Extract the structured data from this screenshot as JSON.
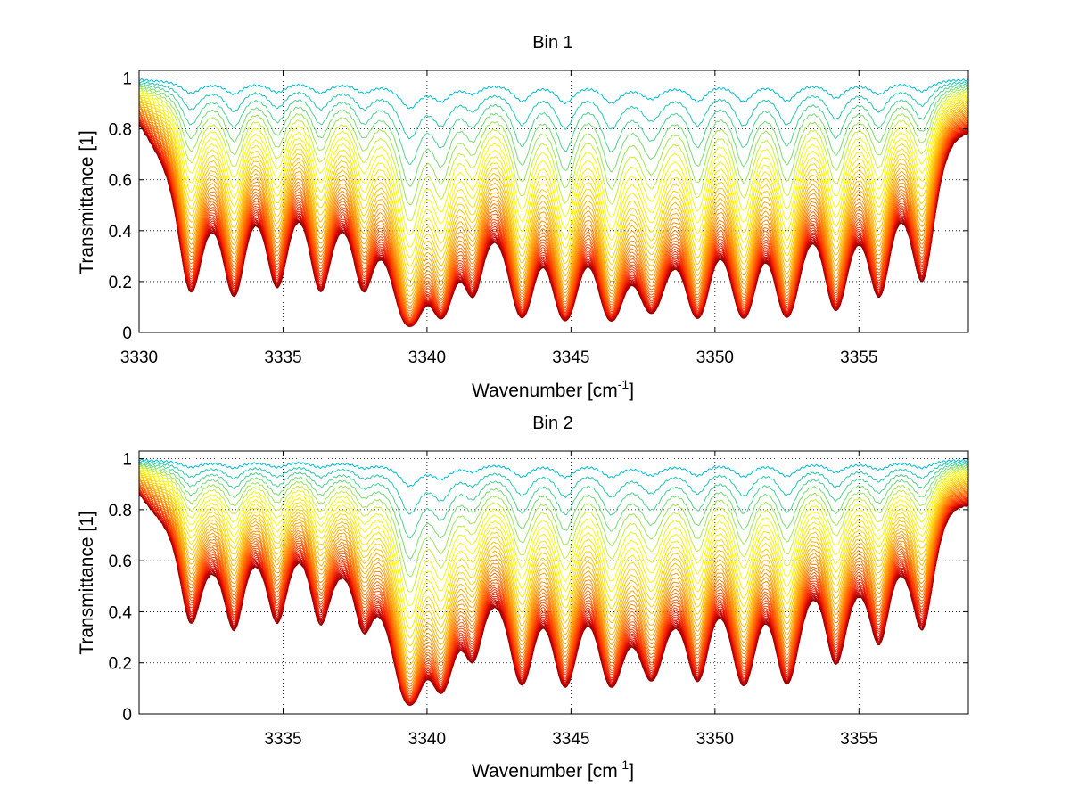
{
  "chart_data": [
    {
      "type": "line",
      "title": "Bin 1",
      "xlabel": "Wavenumber [cm",
      "xlabel_sup": "-1",
      "xlabel_end": "]",
      "ylabel": "Transmittance [1]",
      "xlim": [
        3330,
        3358.8
      ],
      "ylim": [
        0,
        1.03
      ],
      "xticks": [
        3330,
        3335,
        3340,
        3345,
        3350,
        3355
      ],
      "yticks": [
        0,
        0.2,
        0.4,
        0.6,
        0.8,
        1
      ],
      "ytick_labels": [
        "0",
        "0.2",
        "0.4",
        "0.6",
        "0.8",
        "1"
      ],
      "grid": true,
      "colormap": [
        "#7f0000",
        "#cc0000",
        "#ff3300",
        "#ff7700",
        "#ffbb00",
        "#ffff00",
        "#00bcd4"
      ],
      "series_count": 40,
      "absorption_lines": [
        {
          "x": 3331.8,
          "depth": 0.55,
          "width": 0.42
        },
        {
          "x": 3333.3,
          "depth": 0.55,
          "width": 0.4
        },
        {
          "x": 3334.8,
          "depth": 0.45,
          "width": 0.4
        },
        {
          "x": 3336.3,
          "depth": 0.48,
          "width": 0.4
        },
        {
          "x": 3337.8,
          "depth": 0.45,
          "width": 0.4
        },
        {
          "x": 3339.4,
          "depth": 1.1,
          "width": 0.45
        },
        {
          "x": 3340.5,
          "depth": 0.7,
          "width": 0.4
        },
        {
          "x": 3341.6,
          "depth": 0.45,
          "width": 0.4
        },
        {
          "x": 3343.3,
          "depth": 0.8,
          "width": 0.4
        },
        {
          "x": 3344.8,
          "depth": 0.85,
          "width": 0.4
        },
        {
          "x": 3346.4,
          "depth": 0.85,
          "width": 0.42
        },
        {
          "x": 3347.8,
          "depth": 0.7,
          "width": 0.5
        },
        {
          "x": 3349.4,
          "depth": 0.8,
          "width": 0.4
        },
        {
          "x": 3351.0,
          "depth": 0.8,
          "width": 0.4
        },
        {
          "x": 3352.5,
          "depth": 0.8,
          "width": 0.4
        },
        {
          "x": 3354.2,
          "depth": 0.7,
          "width": 0.4
        },
        {
          "x": 3355.7,
          "depth": 0.55,
          "width": 0.4
        },
        {
          "x": 3357.2,
          "depth": 0.45,
          "width": 0.4
        }
      ]
    },
    {
      "type": "line",
      "title": "Bin 2",
      "xlabel": "Wavenumber [cm",
      "xlabel_sup": "-1",
      "xlabel_end": "]",
      "ylabel": "Transmittance [1]",
      "xlim": [
        3330,
        3358.8
      ],
      "ylim": [
        0,
        1.03
      ],
      "xticks": [
        3335,
        3340,
        3345,
        3350,
        3355
      ],
      "yticks": [
        0,
        0.2,
        0.4,
        0.6,
        0.8,
        1
      ],
      "ytick_labels": [
        "0",
        "0.2",
        "0.4",
        "0.6",
        "0.8",
        "1"
      ],
      "grid": true,
      "colormap": [
        "#7f0000",
        "#cc0000",
        "#ff3300",
        "#ff7700",
        "#ffbb00",
        "#ffff00",
        "#00bcd4"
      ],
      "series_count": 40,
      "absorption_lines": [
        {
          "x": 3331.8,
          "depth": 0.3,
          "width": 0.45
        },
        {
          "x": 3333.3,
          "depth": 0.3,
          "width": 0.42
        },
        {
          "x": 3334.8,
          "depth": 0.25,
          "width": 0.42
        },
        {
          "x": 3336.3,
          "depth": 0.25,
          "width": 0.42
        },
        {
          "x": 3337.8,
          "depth": 0.25,
          "width": 0.42
        },
        {
          "x": 3339.4,
          "depth": 1.0,
          "width": 0.45
        },
        {
          "x": 3340.5,
          "depth": 0.6,
          "width": 0.42
        },
        {
          "x": 3341.6,
          "depth": 0.35,
          "width": 0.42
        },
        {
          "x": 3343.3,
          "depth": 0.6,
          "width": 0.42
        },
        {
          "x": 3344.8,
          "depth": 0.6,
          "width": 0.42
        },
        {
          "x": 3346.4,
          "depth": 0.6,
          "width": 0.45
        },
        {
          "x": 3347.8,
          "depth": 0.55,
          "width": 0.5
        },
        {
          "x": 3349.4,
          "depth": 0.55,
          "width": 0.42
        },
        {
          "x": 3351.0,
          "depth": 0.6,
          "width": 0.42
        },
        {
          "x": 3352.5,
          "depth": 0.6,
          "width": 0.42
        },
        {
          "x": 3354.2,
          "depth": 0.45,
          "width": 0.42
        },
        {
          "x": 3355.7,
          "depth": 0.35,
          "width": 0.42
        },
        {
          "x": 3357.2,
          "depth": 0.3,
          "width": 0.42
        }
      ]
    }
  ]
}
